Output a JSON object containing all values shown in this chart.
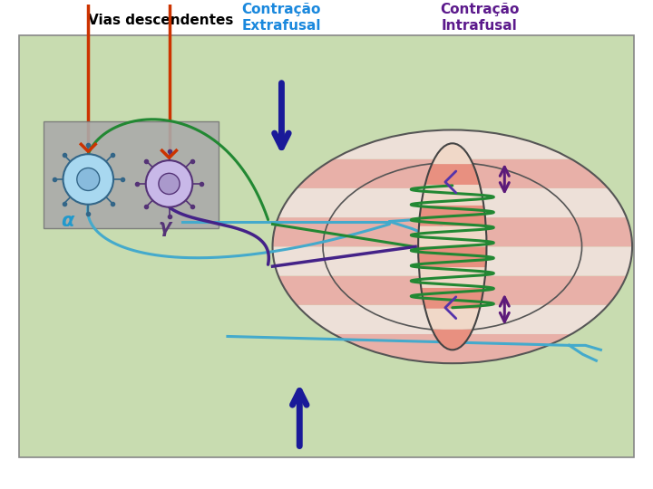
{
  "title_left": "Vias descendentes",
  "title_center": "Contração\nExtrafusal",
  "title_right": "Contração\nIntrafusal",
  "title_left_color": "#000000",
  "title_center_color": "#1a88dd",
  "title_right_color": "#5c1a8c",
  "bg_color": "#c8dcb0",
  "outer_bg": "#ffffff",
  "muscle_stripe_pink": "#e8b0a8",
  "muscle_stripe_light": "#ede0d8",
  "alpha_cell_color": "#a8d8f0",
  "gamma_cell_color": "#c8b8e8",
  "gray_box_color": "#aaaaaa",
  "orange_line_color": "#cc3300",
  "green_axon_color": "#228833",
  "purple_axon_color": "#442288",
  "cyan_axon_color": "#44aacc",
  "dark_blue_arrow_color": "#1a1a99",
  "dark_purple_arrow_color": "#5c1a7a",
  "coil_color": "#228833",
  "spindle_stripe_pink": "#e89080",
  "spindle_stripe_light": "#f0d8c8"
}
